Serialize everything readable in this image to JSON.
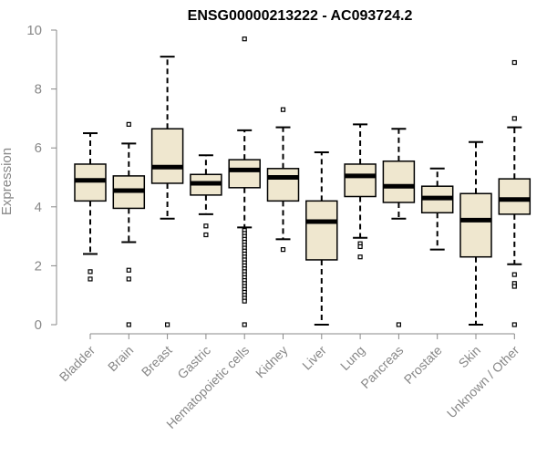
{
  "chart_data": {
    "type": "box",
    "title": "ENSG00000213222 - AC093724.2",
    "ylabel": "Expression",
    "ylim": [
      0,
      10
    ],
    "yticks": [
      0,
      2,
      4,
      6,
      8,
      10
    ],
    "grid": false,
    "colors": {
      "box_fill": "#efe7cf",
      "box_stroke": "#000000",
      "axis": "#888888",
      "title": "#000000"
    },
    "categories": [
      "Bladder",
      "Brain",
      "Breast",
      "Gastric",
      "Hematopoietic cells",
      "Kidney",
      "Liver",
      "Lung",
      "Pancreas",
      "Prostate",
      "Skin",
      "Unknown / Other"
    ],
    "boxes": [
      {
        "category": "Bladder",
        "whisker_low": 2.4,
        "q1": 4.2,
        "median": 4.9,
        "q3": 5.45,
        "whisker_high": 6.5,
        "outliers": [
          1.8,
          1.55
        ]
      },
      {
        "category": "Brain",
        "whisker_low": 2.8,
        "q1": 3.95,
        "median": 4.55,
        "q3": 5.05,
        "whisker_high": 6.15,
        "outliers": [
          6.8,
          1.85,
          1.55,
          0.0
        ]
      },
      {
        "category": "Breast",
        "whisker_low": 3.6,
        "q1": 4.8,
        "median": 5.35,
        "q3": 6.65,
        "whisker_high": 9.1,
        "outliers": [
          0.0
        ]
      },
      {
        "category": "Gastric",
        "whisker_low": 3.75,
        "q1": 4.4,
        "median": 4.8,
        "q3": 5.1,
        "whisker_high": 5.75,
        "outliers": [
          3.35,
          3.05
        ]
      },
      {
        "category": "Hematopoietic cells",
        "whisker_low": 3.3,
        "q1": 4.65,
        "median": 5.25,
        "q3": 5.6,
        "whisker_high": 6.6,
        "outliers": [
          9.7,
          3.2,
          3.1,
          3.0,
          2.9,
          2.8,
          2.7,
          2.6,
          2.5,
          2.4,
          2.3,
          2.2,
          2.1,
          2.0,
          1.9,
          1.8,
          1.7,
          1.6,
          1.5,
          1.4,
          1.3,
          1.2,
          1.1,
          1.0,
          0.9,
          0.8,
          0.0
        ]
      },
      {
        "category": "Kidney",
        "whisker_low": 2.9,
        "q1": 4.2,
        "median": 5.0,
        "q3": 5.3,
        "whisker_high": 6.7,
        "outliers": [
          7.3,
          2.55
        ]
      },
      {
        "category": "Liver",
        "whisker_low": 0.0,
        "q1": 2.2,
        "median": 3.5,
        "q3": 4.2,
        "whisker_high": 5.85,
        "outliers": []
      },
      {
        "category": "Lung",
        "whisker_low": 2.95,
        "q1": 4.35,
        "median": 5.05,
        "q3": 5.45,
        "whisker_high": 6.8,
        "outliers": [
          2.75,
          2.65,
          2.3
        ]
      },
      {
        "category": "Pancreas",
        "whisker_low": 3.6,
        "q1": 4.15,
        "median": 4.7,
        "q3": 5.55,
        "whisker_high": 6.65,
        "outliers": [
          0.0
        ]
      },
      {
        "category": "Prostate",
        "whisker_low": 2.55,
        "q1": 3.8,
        "median": 4.3,
        "q3": 4.7,
        "whisker_high": 5.3,
        "outliers": []
      },
      {
        "category": "Skin",
        "whisker_low": 0.0,
        "q1": 2.3,
        "median": 3.55,
        "q3": 4.45,
        "whisker_high": 6.2,
        "outliers": []
      },
      {
        "category": "Unknown / Other",
        "whisker_low": 2.05,
        "q1": 3.75,
        "median": 4.25,
        "q3": 4.95,
        "whisker_high": 6.7,
        "outliers": [
          8.9,
          7.0,
          1.7,
          1.4,
          1.3,
          0.0
        ]
      }
    ]
  }
}
